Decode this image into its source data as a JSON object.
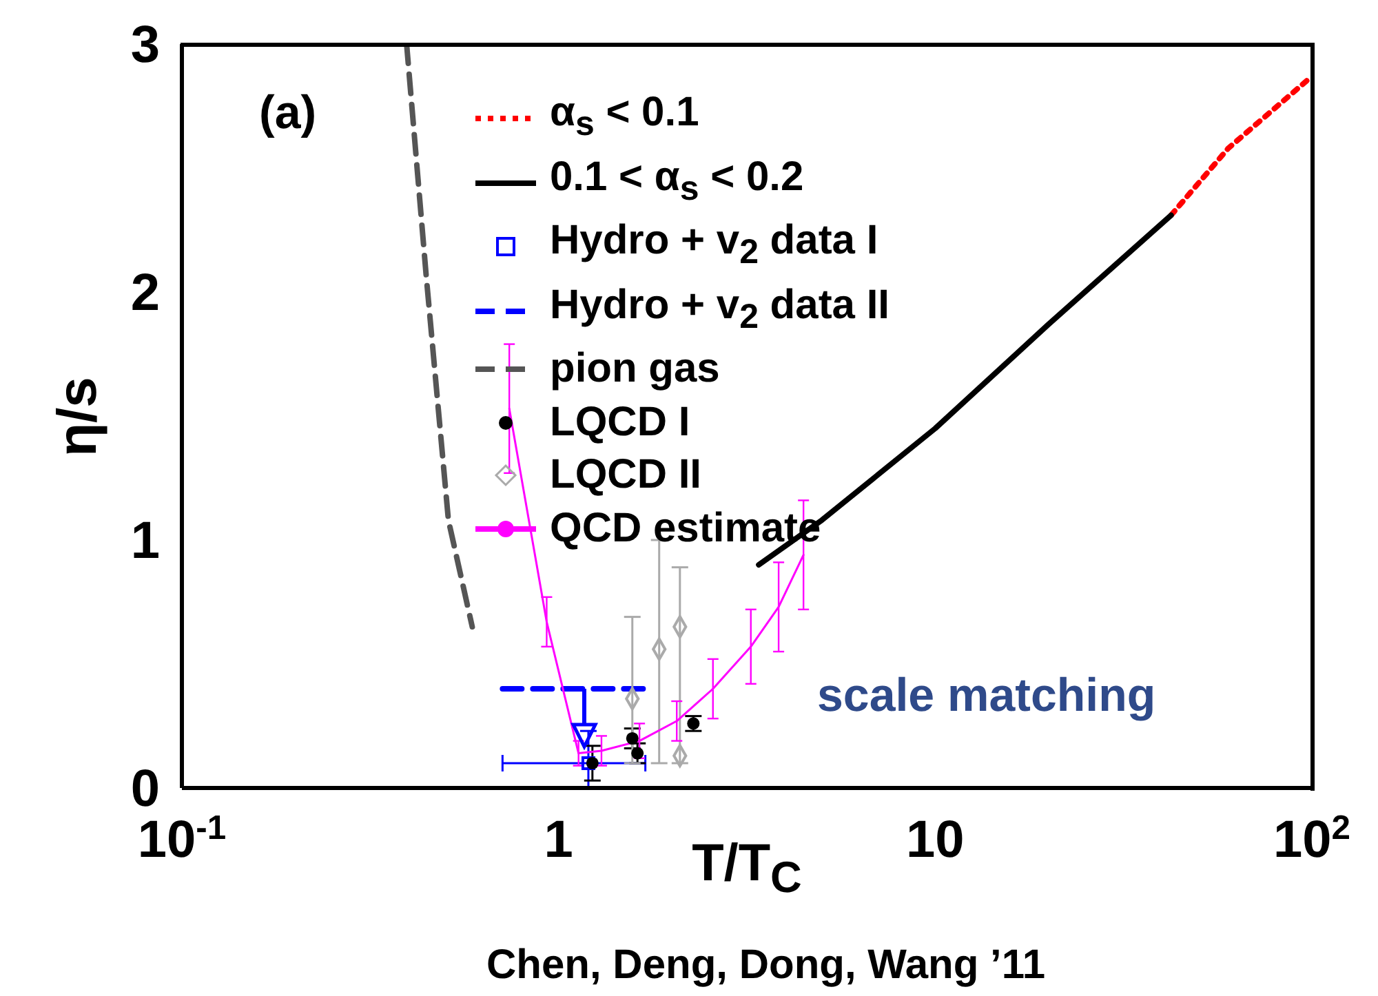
{
  "chart_data": {
    "type": "line",
    "xlabel": "T/T$_{C}$",
    "ylabel": "η/s",
    "log": "x",
    "xlim": [
      0.1,
      100
    ],
    "xticks": [
      {
        "value": 0.1,
        "label": "10$^{-1}$"
      },
      1,
      10,
      {
        "value": 100,
        "label": "10$^{2}$"
      }
    ],
    "ylim": [
      0,
      3
    ],
    "yticks": [
      0,
      1,
      2,
      3
    ],
    "grid": false,
    "legend": "top",
    "annotations": [
      "(a)",
      "scale matching",
      "Chen, Deng, Dong, Wang ’11"
    ],
    "series": [
      {
        "name": "α$_{s}$ < 0.1",
        "color": "#ff0000",
        "line_style": "dotted",
        "marker": "none",
        "x": [
          42.3,
          60,
          100
        ],
        "values": [
          2.31,
          2.58,
          2.87
        ]
      },
      {
        "name": "0.1 < α$_{s}$ < 0.2",
        "color": "#000000",
        "line_style": "solid",
        "marker": "none",
        "x": [
          3.4,
          5,
          10,
          20,
          42.3
        ],
        "values": [
          0.9,
          1.08,
          1.45,
          1.87,
          2.31
        ]
      },
      {
        "name": "Hydro + v$_{2}$ data I",
        "type": "scatter",
        "color": "#0000ff",
        "marker": "square",
        "x": [
          1.2
        ],
        "values": [
          0.1
        ],
        "errors": [
          [
            0,
            0.23
          ]
        ],
        "xerrors": [
          [
            0.71,
            1.7
          ]
        ]
      },
      {
        "name": "Hydro + v$_{2}$ data II",
        "color": "#0000ff",
        "line_style": "dashed",
        "marker": "none",
        "x": [
          0.71,
          1.69
        ],
        "values": [
          0.4,
          0.4
        ]
      },
      {
        "name": "pion gas",
        "color": "#555555",
        "line_style": "dashed",
        "marker": "none",
        "x": [
          0.395,
          0.445,
          0.51,
          0.59
        ],
        "values": [
          3.0,
          2.07,
          1.08,
          0.65
        ]
      },
      {
        "name": "LQCD I",
        "type": "scatter",
        "color": "#000000",
        "marker": "circle",
        "x": [
          1.23,
          1.57,
          1.62,
          2.28
        ],
        "values": [
          0.1,
          0.2,
          0.14,
          0.26
        ],
        "errors": [
          0.07,
          0.04,
          0.04,
          0.03
        ]
      },
      {
        "name": "LQCD II",
        "type": "scatter",
        "color": "#aaaaaa",
        "marker": "diamond",
        "x": [
          1.57,
          1.85,
          2.1,
          2.1
        ],
        "values": [
          0.36,
          0.56,
          0.65,
          0.13
        ],
        "errors": [
          [
            0.1,
            0.69
          ],
          [
            0.1,
            1.0
          ],
          [
            0.1,
            0.89
          ],
          null
        ]
      },
      {
        "name": "QCD estimate",
        "color": "#ff00ff",
        "line_style": "solid",
        "marker": "none",
        "x": [
          0.74,
          0.93,
          1.13,
          1.3,
          1.64,
          2.06,
          2.57,
          3.24,
          3.84,
          4.47
        ],
        "values": [
          1.53,
          0.67,
          0.14,
          0.15,
          0.19,
          0.27,
          0.4,
          0.57,
          0.73,
          0.94
        ],
        "errors": [
          0.26,
          0.1,
          0.05,
          0.06,
          0.07,
          0.08,
          0.12,
          0.15,
          0.18,
          0.22
        ]
      }
    ]
  }
}
